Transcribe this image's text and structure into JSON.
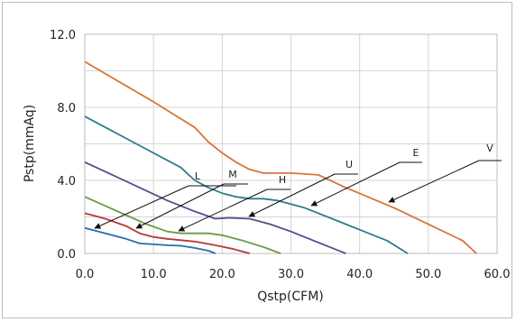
{
  "chart_data": {
    "type": "line",
    "xlabel": "Qstp(CFM)",
    "ylabel": "Pstp(mmAq)",
    "xlim": [
      0,
      60
    ],
    "ylim": [
      0,
      12
    ],
    "x_ticks": [
      "0.0",
      "10.0",
      "20.0",
      "30.0",
      "40.0",
      "50.0",
      "60.0"
    ],
    "y_ticks": [
      "0.0",
      "4.0",
      "8.0",
      "12.0"
    ],
    "grid": true,
    "series": [
      {
        "name": "V",
        "color": "#d6763a",
        "points": [
          [
            0,
            10.5
          ],
          [
            5,
            9.4
          ],
          [
            10,
            8.3
          ],
          [
            13,
            7.6
          ],
          [
            16,
            6.9
          ],
          [
            18,
            6.1
          ],
          [
            20,
            5.5
          ],
          [
            22,
            5.0
          ],
          [
            24,
            4.6
          ],
          [
            26,
            4.4
          ],
          [
            30,
            4.4
          ],
          [
            34,
            4.3
          ],
          [
            38,
            3.6
          ],
          [
            45,
            2.5
          ],
          [
            50,
            1.6
          ],
          [
            55,
            0.7
          ],
          [
            57,
            0.0
          ]
        ]
      },
      {
        "name": "E",
        "color": "#2e7d8c",
        "points": [
          [
            0,
            7.5
          ],
          [
            4,
            6.7
          ],
          [
            8,
            5.9
          ],
          [
            12,
            5.1
          ],
          [
            14,
            4.7
          ],
          [
            16,
            4.0
          ],
          [
            18,
            3.6
          ],
          [
            20,
            3.3
          ],
          [
            22,
            3.1
          ],
          [
            24,
            3.0
          ],
          [
            26,
            3.0
          ],
          [
            28,
            2.9
          ],
          [
            32,
            2.5
          ],
          [
            36,
            1.9
          ],
          [
            40,
            1.3
          ],
          [
            44,
            0.7
          ],
          [
            47,
            0.0
          ]
        ]
      },
      {
        "name": "U",
        "color": "#5a4a8a",
        "points": [
          [
            0,
            5.0
          ],
          [
            4,
            4.3
          ],
          [
            8,
            3.6
          ],
          [
            12,
            2.9
          ],
          [
            16,
            2.3
          ],
          [
            19,
            1.9
          ],
          [
            21,
            1.95
          ],
          [
            24,
            1.9
          ],
          [
            27,
            1.6
          ],
          [
            30,
            1.2
          ],
          [
            34,
            0.6
          ],
          [
            38,
            0.0
          ]
        ]
      },
      {
        "name": "H",
        "color": "#6e9a4a",
        "points": [
          [
            0,
            3.1
          ],
          [
            3,
            2.6
          ],
          [
            6,
            2.1
          ],
          [
            9,
            1.6
          ],
          [
            12,
            1.2
          ],
          [
            14,
            1.1
          ],
          [
            16,
            1.1
          ],
          [
            18,
            1.1
          ],
          [
            20,
            1.0
          ],
          [
            23,
            0.7
          ],
          [
            26,
            0.35
          ],
          [
            28.5,
            0.0
          ]
        ]
      },
      {
        "name": "M",
        "color": "#b53a3a",
        "points": [
          [
            0,
            2.2
          ],
          [
            3,
            1.9
          ],
          [
            6,
            1.5
          ],
          [
            8,
            1.1
          ],
          [
            10,
            0.9
          ],
          [
            12,
            0.8
          ],
          [
            16,
            0.65
          ],
          [
            19,
            0.45
          ],
          [
            21.5,
            0.25
          ],
          [
            24,
            0.0
          ]
        ]
      },
      {
        "name": "L",
        "color": "#2a6cb0",
        "points": [
          [
            0,
            1.4
          ],
          [
            3,
            1.1
          ],
          [
            6,
            0.8
          ],
          [
            8,
            0.55
          ],
          [
            10,
            0.5
          ],
          [
            12,
            0.45
          ],
          [
            14,
            0.42
          ],
          [
            16,
            0.3
          ],
          [
            18,
            0.15
          ],
          [
            19,
            0.0
          ]
        ]
      }
    ]
  }
}
